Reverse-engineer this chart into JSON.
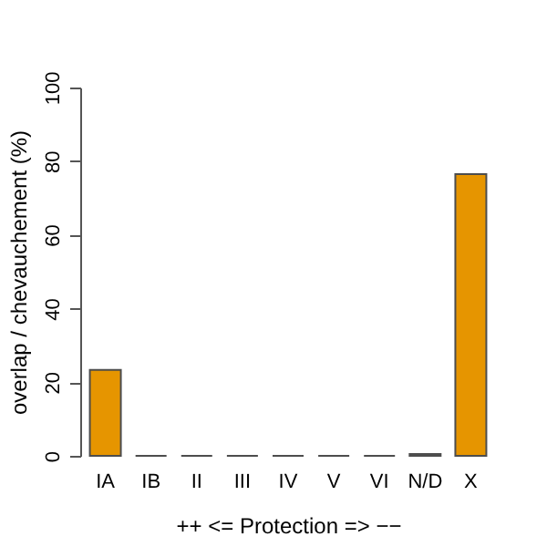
{
  "chart_data": {
    "type": "bar",
    "xlabel": "++    <=  Protection  =>    −−",
    "ylabel": "overlap / chevauchement (%)",
    "categories": [
      "IA",
      "IB",
      "II",
      "III",
      "IV",
      "V",
      "VI",
      "N/D",
      "X"
    ],
    "values": [
      23.3,
      0,
      0,
      0,
      0,
      0,
      0,
      0.5,
      76.5
    ],
    "color": "#e69500",
    "ylim": [
      0,
      100
    ],
    "yticks": [
      0,
      20,
      40,
      60,
      80,
      100
    ],
    "grid": false
  }
}
